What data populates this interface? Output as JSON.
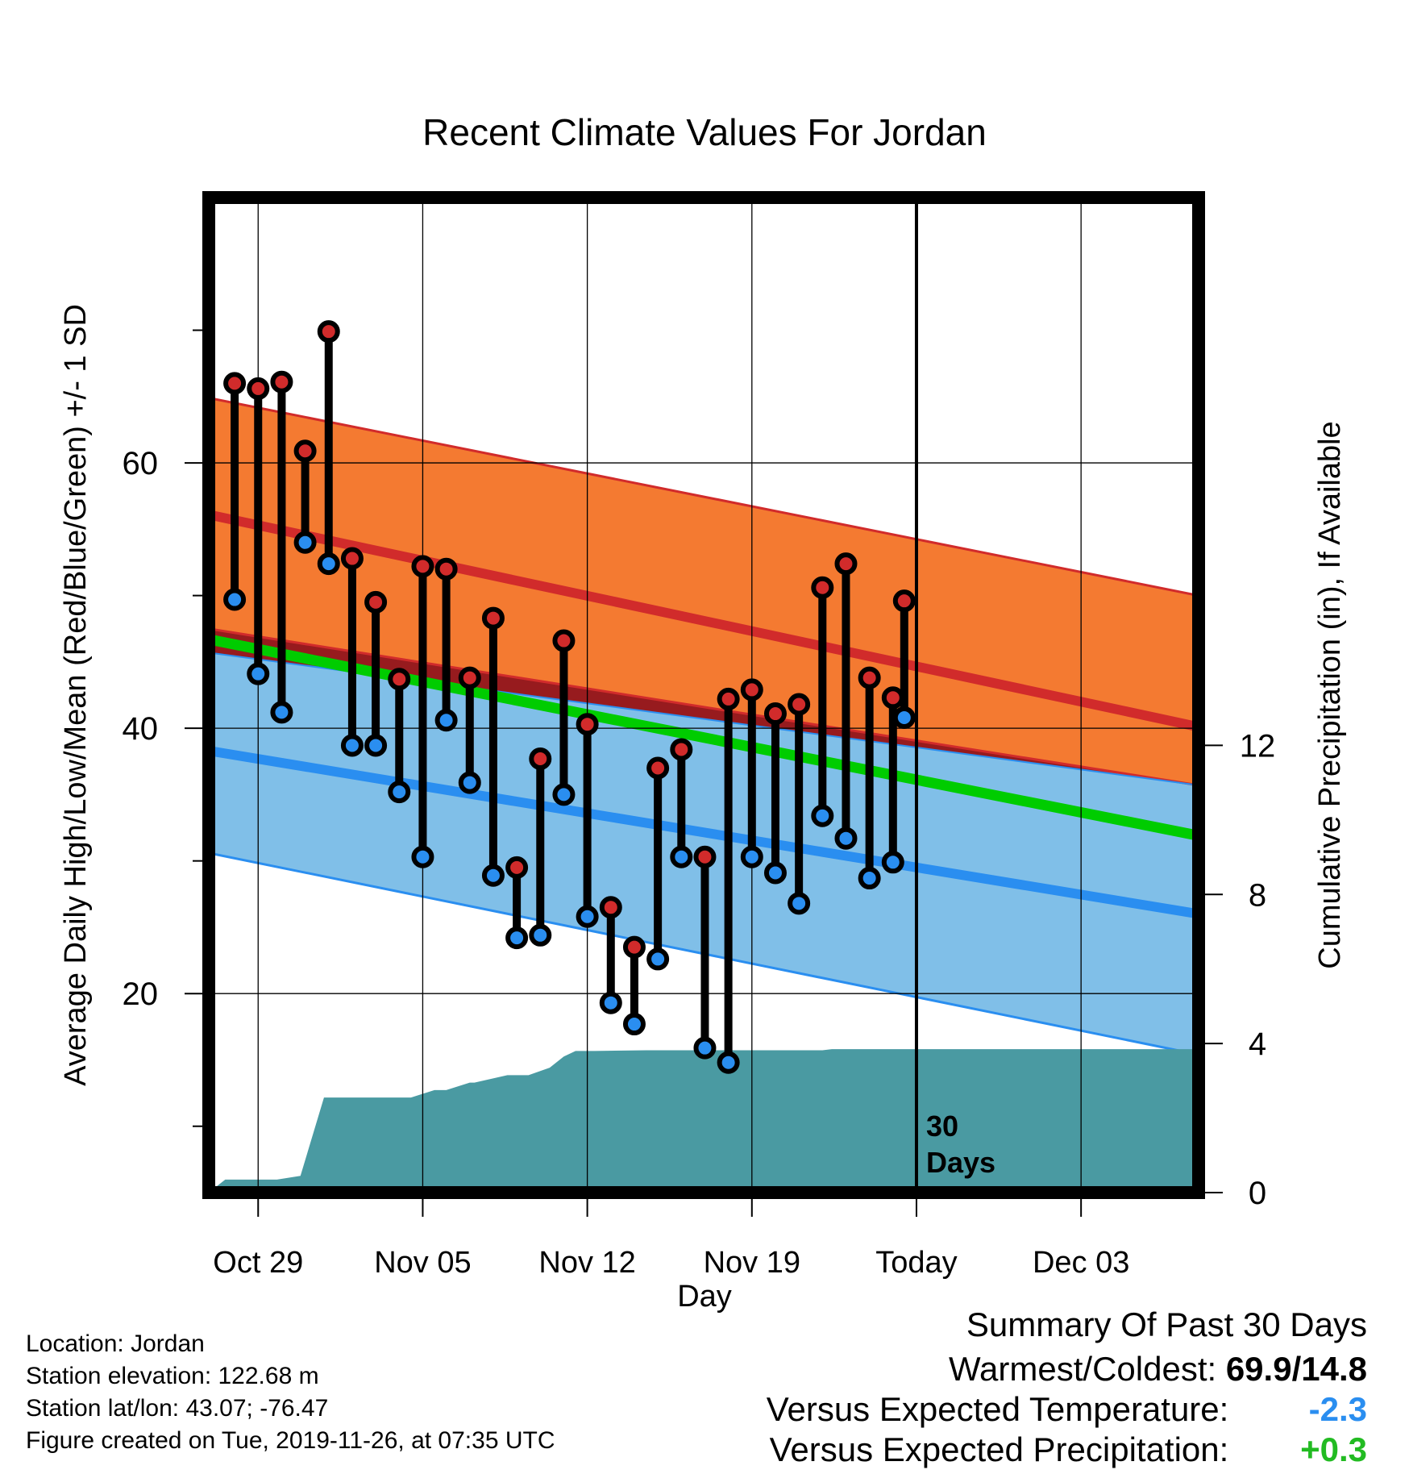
{
  "chart_data": {
    "type": "range-bar",
    "title": "Recent Climate Values For Jordan",
    "xlabel": "Day",
    "ylabel_left": "Average Daily High/Low/Mean (Red/Blue/Green) +/- 1 SD",
    "ylabel_right": "Cumulative Precipitation (in), If Available",
    "x_range_days": [
      -30.1,
      12.0
    ],
    "ylim": [
      5,
      80
    ],
    "y2lim": [
      0,
      26.7
    ],
    "grid": true,
    "x_ticks": [
      {
        "day": -28,
        "label": "Oct 29"
      },
      {
        "day": -21,
        "label": "Nov 05"
      },
      {
        "day": -14,
        "label": "Nov 12"
      },
      {
        "day": -7,
        "label": "Nov 19"
      },
      {
        "day": 0,
        "label": "Today"
      },
      {
        "day": 7,
        "label": "Dec 03"
      }
    ],
    "y_ticks": [
      20,
      40,
      60
    ],
    "y_minor_ticks": [
      10,
      30,
      50,
      70
    ],
    "y2_ticks": [
      0,
      4,
      8,
      12
    ],
    "today_marker": {
      "day": 0,
      "label": "30\nDays"
    },
    "normals": {
      "x": [
        -30.1,
        12.0
      ],
      "high_mean": [
        56.1,
        40.1
      ],
      "high_upper": [
        64.9,
        50.0
      ],
      "high_lower": [
        47.5,
        35.7
      ],
      "low_mean": [
        38.3,
        26.0
      ],
      "low_upper": [
        45.7,
        35.7
      ],
      "low_lower": [
        30.6,
        15.4
      ],
      "mean": [
        46.7,
        31.9
      ]
    },
    "observations": {
      "days": [
        -29,
        -28,
        -27,
        -26,
        -25,
        -24,
        -23,
        -22,
        -21,
        -20,
        -19,
        -18,
        -17,
        -16,
        -15,
        -14,
        -13,
        -12,
        -11,
        -10,
        -9,
        -8,
        -7,
        -6,
        -5,
        -4,
        -3,
        -2,
        -1
      ],
      "high": [
        66.0,
        65.6,
        66.1,
        60.9,
        69.9,
        52.8,
        49.5,
        43.7,
        52.2,
        52.0,
        43.8,
        48.3,
        29.5,
        37.7,
        46.6,
        40.3,
        26.5,
        23.5,
        37.0,
        38.4,
        30.3,
        42.2,
        42.9,
        41.1,
        41.8,
        50.6,
        52.4,
        43.8,
        42.3
      ],
      "low": [
        49.7,
        44.1,
        41.2,
        54.0,
        52.4,
        38.7,
        38.7,
        35.2,
        30.3,
        40.6,
        35.9,
        28.9,
        24.2,
        24.4,
        35.0,
        25.8,
        19.3,
        17.7,
        22.6,
        30.3,
        15.9,
        14.8,
        30.3,
        29.1,
        26.8,
        33.4,
        31.7,
        28.7,
        29.9
      ]
    },
    "extra_point": {
      "day": -1,
      "high": 49.6,
      "low": 40.8
    },
    "precip_cumulative": {
      "x": [
        -30.1,
        -29.4,
        -27.2,
        -26.2,
        -25.2,
        -22.5,
        -21.5,
        -20.5,
        -20,
        -19,
        -18.8,
        -17.4,
        -16.5,
        -15.6,
        -15,
        -14.5,
        -14,
        -13.7,
        -11.5,
        -10,
        -8,
        -6,
        -4,
        -3.6,
        -1,
        1,
        3,
        5,
        8,
        12
      ],
      "values": [
        0,
        0.35,
        0.35,
        0.45,
        2.55,
        2.55,
        2.55,
        2.75,
        2.75,
        2.95,
        2.95,
        3.15,
        3.15,
        3.35,
        3.65,
        3.8,
        3.8,
        3.8,
        3.82,
        3.82,
        3.82,
        3.82,
        3.82,
        3.85,
        3.85,
        3.85,
        3.85,
        3.85,
        3.85,
        3.85
      ]
    },
    "colors": {
      "high_band": "#f47a31",
      "high_line": "#d12b2b",
      "low_band": "#80bfe8",
      "low_line": "#2a8ef0",
      "overlap": "#971b1e",
      "mean_line": "#00cc00",
      "precip": "#4a9aa2",
      "high_dot": "#d12b2b",
      "low_dot": "#2a8ef0"
    }
  },
  "info": {
    "location": "Location: Jordan",
    "elevation": "Station elevation: 122.68 m",
    "latlon": "Station lat/lon: 43.07; -76.47",
    "created": "Figure created on Tue, 2019-11-26, at 07:35 UTC"
  },
  "summary": {
    "heading": "Summary Of Past 30 Days",
    "warm_cold_label": "Warmest/Coldest:",
    "warm_cold_value": "69.9/14.8",
    "temp_label": "Versus Expected Temperature:",
    "temp_value": "-2.3",
    "temp_color": "#2a8ef0",
    "precip_label": "Versus Expected Precipitation:",
    "precip_value": "+0.3",
    "precip_color": "#22bb22"
  }
}
